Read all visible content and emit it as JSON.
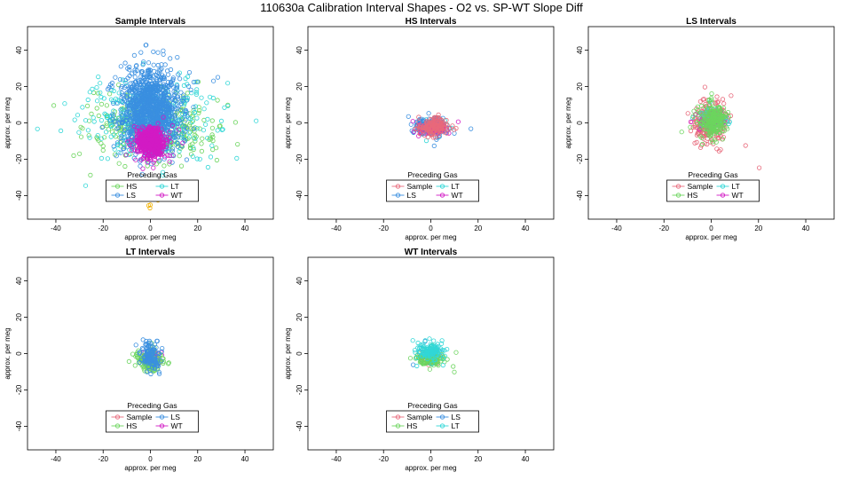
{
  "title": "110630a   Calibration Interval Shapes - O2 vs. SP-WT Slope Diff",
  "colors": {
    "Sample": "#e8697b",
    "HS": "#6cd55e",
    "LS": "#3a8fe0",
    "LT": "#31d7d7",
    "WT": "#d21bc4",
    "extra": "#f0b000"
  },
  "chart_data": [
    {
      "type": "scatter",
      "title": "Sample Intervals",
      "xlabel": "approx. per meg",
      "ylabel": "approx. per meg",
      "xlim": [
        -52,
        52
      ],
      "ylim": [
        -53,
        53
      ],
      "xticks": [
        -40,
        -20,
        0,
        20,
        40
      ],
      "yticks": [
        -40,
        -20,
        0,
        20,
        40
      ],
      "legend_title": "Preceding Gas",
      "legend": [
        "HS",
        "LT",
        "LS",
        "WT"
      ],
      "series": [
        {
          "name": "HS",
          "n": 350,
          "cx": 0,
          "cy": -3,
          "sx": 13,
          "sy": 9
        },
        {
          "name": "LT",
          "n": 300,
          "cx": 0,
          "cy": 2,
          "sx": 15,
          "sy": 12
        },
        {
          "name": "LS",
          "n": 1200,
          "cx": 0,
          "cy": 7,
          "sx": 6,
          "sy": 11
        },
        {
          "name": "WT",
          "n": 550,
          "cx": 0,
          "cy": -11,
          "sx": 3,
          "sy": 4
        },
        {
          "name": "extra",
          "n": 6,
          "cx": 0,
          "cy": -44,
          "sx": 2,
          "sy": 3
        }
      ]
    },
    {
      "type": "scatter",
      "title": "HS Intervals",
      "xlabel": "approx. per meg",
      "ylabel": "approx. per meg",
      "xlim": [
        -52,
        52
      ],
      "ylim": [
        -53,
        53
      ],
      "xticks": [
        -40,
        -20,
        0,
        20,
        40
      ],
      "yticks": [
        -40,
        -20,
        0,
        20,
        40
      ],
      "legend_title": "Preceding Gas",
      "legend": [
        "Sample",
        "LT",
        "LS",
        "WT"
      ],
      "series": [
        {
          "name": "LT",
          "n": 60,
          "cx": 0,
          "cy": -2,
          "sx": 3,
          "sy": 2
        },
        {
          "name": "LS",
          "n": 250,
          "cx": 0,
          "cy": -2,
          "sx": 3,
          "sy": 2
        },
        {
          "name": "WT",
          "n": 50,
          "cx": 1,
          "cy": -3,
          "sx": 3,
          "sy": 2
        },
        {
          "name": "Sample",
          "n": 150,
          "cx": 1,
          "cy": -2,
          "sx": 3,
          "sy": 2.5
        }
      ]
    },
    {
      "type": "scatter",
      "title": "LS Intervals",
      "xlabel": "approx. per meg",
      "ylabel": "approx. per meg",
      "xlim": [
        -52,
        52
      ],
      "ylim": [
        -53,
        53
      ],
      "xticks": [
        -40,
        -20,
        0,
        20,
        40
      ],
      "yticks": [
        -40,
        -20,
        0,
        20,
        40
      ],
      "legend_title": "Preceding Gas",
      "legend": [
        "Sample",
        "LT",
        "HS",
        "WT"
      ],
      "series": [
        {
          "name": "Sample",
          "n": 250,
          "cx": 0,
          "cy": 1,
          "sx": 3.5,
          "sy": 6
        },
        {
          "name": "LT",
          "n": 50,
          "cx": 0,
          "cy": 2,
          "sx": 3,
          "sy": 3
        },
        {
          "name": "WT",
          "n": 30,
          "cx": 0,
          "cy": 2,
          "sx": 3,
          "sy": 3
        },
        {
          "name": "HS",
          "n": 220,
          "cx": 1,
          "cy": 1,
          "sx": 3,
          "sy": 4.5
        }
      ]
    },
    {
      "type": "scatter",
      "title": "LT Intervals",
      "xlabel": "approx. per meg",
      "ylabel": "approx. per meg",
      "xlim": [
        -52,
        52
      ],
      "ylim": [
        -53,
        53
      ],
      "xticks": [
        -40,
        -20,
        0,
        20,
        40
      ],
      "yticks": [
        -40,
        -20,
        0,
        20,
        40
      ],
      "legend_title": "Preceding Gas",
      "legend": [
        "Sample",
        "LS",
        "HS",
        "WT"
      ],
      "series": [
        {
          "name": "Sample",
          "n": 20,
          "cx": 0,
          "cy": -2,
          "sx": 2,
          "sy": 2
        },
        {
          "name": "WT",
          "n": 20,
          "cx": 0,
          "cy": -2,
          "sx": 2,
          "sy": 2
        },
        {
          "name": "HS",
          "n": 150,
          "cx": 0,
          "cy": -4,
          "sx": 3,
          "sy": 3
        },
        {
          "name": "LS",
          "n": 120,
          "cx": 0,
          "cy": -1,
          "sx": 2,
          "sy": 3.5
        }
      ]
    },
    {
      "type": "scatter",
      "title": "WT Intervals",
      "xlabel": "approx. per meg",
      "ylabel": "approx. per meg",
      "xlim": [
        -52,
        52
      ],
      "ylim": [
        -53,
        53
      ],
      "xticks": [
        -40,
        -20,
        0,
        20,
        40
      ],
      "yticks": [
        -40,
        -20,
        0,
        20,
        40
      ],
      "legend_title": "Preceding Gas",
      "legend": [
        "Sample",
        "LS",
        "HS",
        "LT"
      ],
      "series": [
        {
          "name": "Sample",
          "n": 30,
          "cx": 0,
          "cy": -2,
          "sx": 2,
          "sy": 2
        },
        {
          "name": "LS",
          "n": 40,
          "cx": 0,
          "cy": -1,
          "sx": 2,
          "sy": 2
        },
        {
          "name": "HS",
          "n": 120,
          "cx": 0,
          "cy": -3,
          "sx": 3,
          "sy": 2
        },
        {
          "name": "LT",
          "n": 120,
          "cx": 0,
          "cy": 2,
          "sx": 3,
          "sy": 2.5
        }
      ]
    }
  ]
}
